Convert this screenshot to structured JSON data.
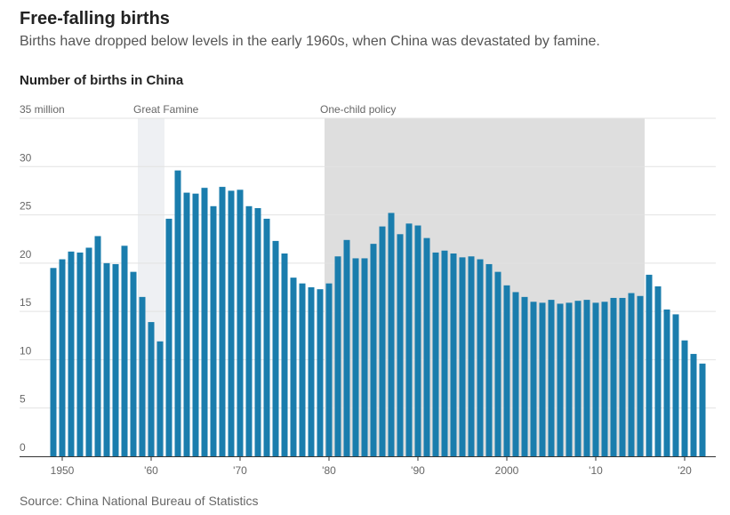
{
  "header": {
    "title": "Free-falling births",
    "subtitle": "Births have dropped below levels in the early 1960s, when China was devastated by famine.",
    "chart_title": "Number of births in China"
  },
  "footer": {
    "source": "Source: China National Bureau of Statistics"
  },
  "colors": {
    "bar": "#1a7dad",
    "famine_band": "#eef0f3",
    "policy_band": "#dedede"
  },
  "chart_data": {
    "type": "bar",
    "title": "Number of births in China",
    "ylabel": "million",
    "ylim": [
      0,
      35
    ],
    "yticks": [
      0,
      5,
      10,
      15,
      20,
      25,
      30,
      35
    ],
    "ytick_labels": [
      "0",
      "5",
      "10",
      "15",
      "20",
      "25",
      "30",
      "35 million"
    ],
    "xticks": [
      1950,
      1960,
      1970,
      1980,
      1990,
      2000,
      2010,
      2020
    ],
    "xtick_labels": [
      "1950",
      "'60",
      "'70",
      "'80",
      "'90",
      "2000",
      "'10",
      "'20"
    ],
    "grid": true,
    "annotations": [
      {
        "label": "Great Famine",
        "start": 1959,
        "end": 1961
      },
      {
        "label": "One-child policy",
        "start": 1980,
        "end": 2015
      }
    ],
    "years": [
      1949,
      1950,
      1951,
      1952,
      1953,
      1954,
      1955,
      1956,
      1957,
      1958,
      1959,
      1960,
      1961,
      1962,
      1963,
      1964,
      1965,
      1966,
      1967,
      1968,
      1969,
      1970,
      1971,
      1972,
      1973,
      1974,
      1975,
      1976,
      1977,
      1978,
      1979,
      1980,
      1981,
      1982,
      1983,
      1984,
      1985,
      1986,
      1987,
      1988,
      1989,
      1990,
      1991,
      1992,
      1993,
      1994,
      1995,
      1996,
      1997,
      1998,
      1999,
      2000,
      2001,
      2002,
      2003,
      2004,
      2005,
      2006,
      2007,
      2008,
      2009,
      2010,
      2011,
      2012,
      2013,
      2014,
      2015,
      2016,
      2017,
      2018,
      2019,
      2020,
      2021,
      2022
    ],
    "values": [
      19.5,
      20.4,
      21.2,
      21.1,
      21.6,
      22.8,
      20.0,
      19.9,
      21.8,
      19.1,
      16.5,
      13.9,
      11.9,
      24.6,
      29.6,
      27.3,
      27.2,
      27.8,
      25.9,
      27.9,
      27.5,
      27.6,
      25.9,
      25.7,
      24.6,
      22.3,
      21.0,
      18.5,
      17.9,
      17.5,
      17.3,
      17.9,
      20.7,
      22.4,
      20.5,
      20.5,
      22.0,
      23.8,
      25.2,
      23.0,
      24.1,
      23.9,
      22.6,
      21.1,
      21.3,
      21.0,
      20.6,
      20.7,
      20.4,
      19.9,
      19.1,
      17.7,
      17.0,
      16.5,
      16.0,
      15.9,
      16.2,
      15.8,
      15.9,
      16.1,
      16.2,
      15.9,
      16.0,
      16.4,
      16.4,
      16.9,
      16.6,
      18.8,
      17.6,
      15.2,
      14.7,
      12.0,
      10.6,
      9.6
    ]
  }
}
